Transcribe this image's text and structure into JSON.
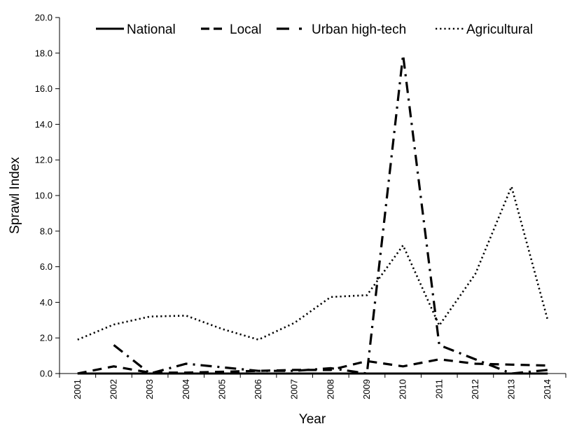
{
  "chart_data": {
    "type": "line",
    "title": "",
    "xlabel": "Year",
    "ylabel": "Sprawl Index",
    "ylim": [
      0,
      20
    ],
    "yticks": [
      "0.0",
      "2.0",
      "4.0",
      "6.0",
      "8.0",
      "10.0",
      "12.0",
      "14.0",
      "16.0",
      "18.0",
      "20.0"
    ],
    "categories": [
      "2001",
      "2002",
      "2003",
      "2004",
      "2005",
      "2006",
      "2007",
      "2008",
      "2009",
      "2010",
      "2011",
      "2012",
      "2013",
      "2014"
    ],
    "grid": false,
    "legend_position": "top",
    "series": [
      {
        "name": "National",
        "style": "solid",
        "values": [
          0.0,
          0.0,
          0.0,
          0.0,
          0.0,
          0.0,
          0.0,
          0.0,
          0.0,
          0.0,
          0.0,
          0.0,
          0.0,
          0.0
        ]
      },
      {
        "name": "Local",
        "style": "dashed",
        "values": [
          0.0,
          0.4,
          0.05,
          0.05,
          0.1,
          0.15,
          0.2,
          0.2,
          0.7,
          0.4,
          0.8,
          0.55,
          0.5,
          0.45
        ]
      },
      {
        "name": "Urban high-tech",
        "style": "dashdot",
        "values": [
          null,
          1.6,
          0.0,
          0.55,
          0.35,
          0.15,
          0.15,
          0.3,
          0.0,
          17.9,
          1.6,
          0.8,
          0.0,
          0.2
        ]
      },
      {
        "name": "Agricultural",
        "style": "dotted",
        "values": [
          1.9,
          2.75,
          3.2,
          3.25,
          2.5,
          1.9,
          2.85,
          4.3,
          4.4,
          7.2,
          2.7,
          5.6,
          10.5,
          3.0
        ]
      }
    ]
  }
}
